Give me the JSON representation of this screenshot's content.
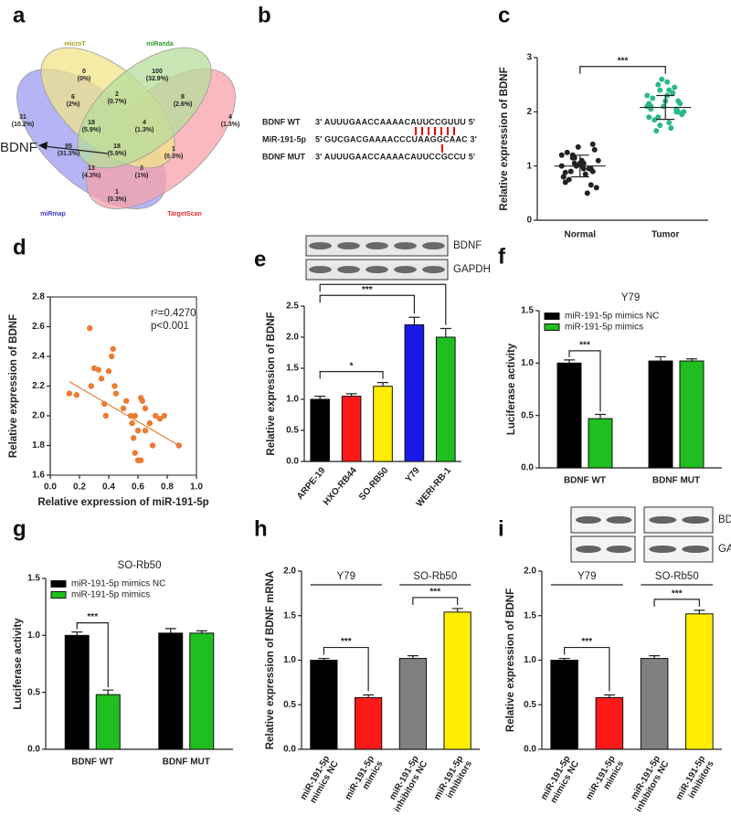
{
  "chart_data": [
    {
      "panel": "a",
      "type": "venn",
      "sets": [
        "microT",
        "miRanda",
        "miRmap",
        "TargetScan"
      ],
      "colors": [
        "#f2e48a",
        "#b5dd9a",
        "#9c9cf2",
        "#f7a2a8"
      ],
      "label_colors": [
        "#a8a020",
        "#2a9a2a",
        "#3d3dc8",
        "#e03030"
      ],
      "regions": [
        {
          "count": 0,
          "percent": "(0%)"
        },
        {
          "count": 100,
          "percent": "(32.9%)"
        },
        {
          "count": 31,
          "percent": "(10.2%)"
        },
        {
          "count": 4,
          "percent": "(1.3%)"
        },
        {
          "count": 6,
          "percent": "(2%)"
        },
        {
          "count": 2,
          "percent": "(0.7%)"
        },
        {
          "count": 8,
          "percent": "(2.6%)"
        },
        {
          "count": 18,
          "percent": "(5.9%)"
        },
        {
          "count": 4,
          "percent": "(1.3%)"
        },
        {
          "count": 95,
          "percent": "(31.3%)"
        },
        {
          "count": 18,
          "percent": "(5.9%)"
        },
        {
          "count": 1,
          "percent": "(0.3%)"
        },
        {
          "count": 13,
          "percent": "(4.3%)"
        },
        {
          "count": 3,
          "percent": "(1%)"
        },
        {
          "count": 1,
          "percent": "(0.3%)"
        }
      ],
      "annotation": "BDNF"
    },
    {
      "panel": "b",
      "type": "alignment",
      "rows": [
        {
          "label": "BDNF WT",
          "sequence": "3' AUUUGAACCAAAACAUUCCGUUU 5'"
        },
        {
          "label": "MiR-191-5p",
          "sequence": "5' GUCGACGAAAACCCUAAGGCAAC 3'"
        },
        {
          "label": "BDNF MUT",
          "sequence": "3' AUUUGAACCAAAACAUUCCGCCU 5'"
        }
      ]
    },
    {
      "panel": "c",
      "type": "strip",
      "ylabel": "Relative expression of BDNF",
      "categories": [
        "Normal",
        "Tumor"
      ],
      "colors": [
        "#222222",
        "#2bb88a"
      ],
      "values": [
        [
          1.0,
          0.95,
          1.1,
          1.2,
          0.8,
          0.9,
          1.05,
          1.15,
          0.7,
          1.3,
          0.85,
          1.0,
          1.25,
          0.6,
          0.5,
          1.35,
          0.75,
          1.1,
          0.95,
          1.05,
          0.9,
          1.2,
          0.65,
          1.0,
          1.15,
          0.8,
          1.4,
          0.95,
          1.05,
          0.88
        ],
        [
          2.1,
          2.0,
          2.3,
          2.5,
          1.9,
          2.2,
          1.8,
          2.4,
          2.05,
          2.15,
          1.7,
          2.6,
          2.25,
          1.95,
          2.35,
          2.1,
          1.85,
          2.0,
          2.45,
          2.2,
          1.65,
          2.3,
          2.05,
          2.55,
          1.9,
          2.15,
          2.0,
          2.4,
          1.75,
          2.1
        ]
      ],
      "means": [
        1.0,
        2.08
      ],
      "sds": [
        0.2,
        0.22
      ],
      "ylim": [
        0,
        3
      ],
      "yticks": [
        0,
        1,
        2,
        3
      ],
      "significance": [
        {
          "from": 0,
          "to": 1,
          "label": "***"
        }
      ]
    },
    {
      "panel": "d",
      "type": "scatter",
      "xlabel": "Relative expression of miR-191-5p",
      "ylabel": "Relative expression of BDNF",
      "color": "#e87d33",
      "x": [
        0.13,
        0.18,
        0.27,
        0.28,
        0.3,
        0.33,
        0.35,
        0.37,
        0.4,
        0.42,
        0.43,
        0.44,
        0.38,
        0.45,
        0.5,
        0.52,
        0.55,
        0.56,
        0.57,
        0.58,
        0.6,
        0.58,
        0.6,
        0.62,
        0.63,
        0.65,
        0.65,
        0.68,
        0.7,
        0.72,
        0.75,
        0.78,
        0.88,
        0.62
      ],
      "values": [
        2.15,
        2.14,
        2.59,
        2.2,
        2.32,
        2.31,
        2.25,
        2.08,
        2.3,
        2.4,
        2.45,
        2.2,
        2.0,
        2.15,
        2.05,
        2.1,
        2.0,
        1.95,
        1.85,
        1.75,
        1.7,
        2.0,
        1.9,
        2.12,
        2.1,
        1.9,
        2.05,
        1.95,
        1.8,
        2.0,
        1.98,
        2.0,
        1.8,
        1.7
      ],
      "trendline": {
        "x": [
          0.13,
          0.88
        ],
        "values": [
          2.23,
          1.8
        ]
      },
      "annotations": [
        "r²=0.4270",
        "p<0.001"
      ],
      "xlim": [
        0,
        1
      ],
      "xticks": [
        {
          "value": 0,
          "label": "0.0"
        },
        0.2,
        0.4,
        0.6,
        0.8,
        {
          "value": 1,
          "label": "1.0"
        }
      ],
      "ylim": [
        1.6,
        2.8
      ],
      "yticks": [
        1.6,
        1.8,
        {
          "value": 2,
          "label": "2.0"
        },
        2.2,
        2.4,
        2.6,
        2.8
      ]
    },
    {
      "panel": "e",
      "type": "bar",
      "ylabel": "Relative expression of BDNF",
      "blot_labels": [
        "BDNF",
        "GAPDH"
      ],
      "categories": [
        "ARPE-19",
        "HXO-RB44",
        "SO-RB50",
        "Y79",
        "WERI-RB-1"
      ],
      "values": [
        1.0,
        1.05,
        1.21,
        2.2,
        2.0
      ],
      "errors": [
        0.05,
        0.04,
        0.06,
        0.12,
        0.14
      ],
      "colors": [
        "#000000",
        "#ff1a1a",
        "#ffee00",
        "#1a1ae6",
        "#1fbf1f"
      ],
      "ylim": [
        0,
        2.5
      ],
      "yticks": [
        {
          "value": 0,
          "label": "0.0"
        },
        0.5,
        {
          "value": 1,
          "label": "1.0"
        },
        1.5,
        {
          "value": 2,
          "label": "2.0"
        },
        2.5
      ],
      "significance": [
        {
          "from": 0,
          "to": 2,
          "label": "*"
        },
        {
          "from": 0,
          "to": 3,
          "label": "***"
        },
        {
          "from": 0,
          "to": 4,
          "label": "***"
        }
      ]
    },
    {
      "panel": "f",
      "type": "grouped_bar",
      "title": "Y79",
      "ylabel": "Luciferase activity",
      "categories": [
        "BDNF WT",
        "BDNF MUT"
      ],
      "series": [
        {
          "name": "miR-191-5p mimics NC",
          "color": "#000000",
          "values": [
            1.0,
            1.02
          ],
          "errors": [
            0.03,
            0.04
          ]
        },
        {
          "name": "miR-191-5p mimics",
          "color": "#1fbf1f",
          "values": [
            0.47,
            1.02
          ],
          "errors": [
            0.04,
            0.02
          ]
        }
      ],
      "legend": "upper left",
      "ylim": [
        0,
        1.5
      ],
      "yticks": [
        {
          "value": 0,
          "label": "0.0"
        },
        0.5,
        {
          "value": 1,
          "label": "1.0"
        },
        1.5
      ],
      "significance": [
        {
          "category": 0,
          "from": 0,
          "to": 1,
          "label": "***"
        }
      ]
    },
    {
      "panel": "g",
      "type": "grouped_bar",
      "title": "SO-Rb50",
      "ylabel": "Luciferase activity",
      "categories": [
        "BDNF WT",
        "BDNF MUT"
      ],
      "series": [
        {
          "name": "miR-191-5p mimics NC",
          "color": "#000000",
          "values": [
            1.0,
            1.02
          ],
          "errors": [
            0.03,
            0.04
          ]
        },
        {
          "name": "miR-191-5p mimics",
          "color": "#1fbf1f",
          "values": [
            0.48,
            1.02
          ],
          "errors": [
            0.04,
            0.02
          ]
        }
      ],
      "legend": "upper left",
      "ylim": [
        0,
        1.5
      ],
      "yticks": [
        {
          "value": 0,
          "label": "0.0"
        },
        0.5,
        {
          "value": 1,
          "label": "1.0"
        },
        1.5
      ],
      "significance": [
        {
          "category": 0,
          "from": 0,
          "to": 1,
          "label": "***"
        }
      ]
    },
    {
      "panel": "h",
      "type": "bar",
      "ylabel": "Relative expression of BDNF mRNA",
      "categories": [
        [
          "miR-191-5p",
          "mimics NC"
        ],
        [
          "miR-191-5p",
          "mimics"
        ],
        [
          "miR-191-5p",
          "inhibitors NC"
        ],
        [
          "miR-191-5p",
          "inhibitors"
        ]
      ],
      "values": [
        1.0,
        0.58,
        1.02,
        1.54
      ],
      "errors": [
        0.02,
        0.03,
        0.03,
        0.04
      ],
      "colors": [
        "#000000",
        "#ff1a1a",
        "#808080",
        "#ffee00"
      ],
      "groups": [
        {
          "label": "Y79",
          "from": 0,
          "to": 1
        },
        {
          "label": "SO-Rb50",
          "from": 2,
          "to": 3
        }
      ],
      "ylim": [
        0,
        2
      ],
      "yticks": [
        {
          "value": 0,
          "label": "0.0"
        },
        0.5,
        {
          "value": 1,
          "label": "1.0"
        },
        1.5,
        {
          "value": 2,
          "label": "2.0"
        }
      ],
      "significance": [
        {
          "from": 0,
          "to": 1,
          "label": "***"
        },
        {
          "from": 2,
          "to": 3,
          "label": "***"
        }
      ]
    },
    {
      "panel": "i",
      "type": "bar",
      "ylabel": "Relative expression of BDNF",
      "blot_labels": [
        "BDNF",
        "GAPDH"
      ],
      "categories": [
        [
          "miR-191-5p",
          "mimics NC"
        ],
        [
          "miR-191-5p",
          "mimics"
        ],
        [
          "miR-191-5p",
          "inhibitors NC"
        ],
        [
          "miR-191-5p",
          "inhibitors"
        ]
      ],
      "values": [
        1.0,
        0.58,
        1.02,
        1.52
      ],
      "errors": [
        0.02,
        0.03,
        0.03,
        0.04
      ],
      "colors": [
        "#000000",
        "#ff1a1a",
        "#808080",
        "#ffee00"
      ],
      "groups": [
        {
          "label": "Y79",
          "from": 0,
          "to": 1
        },
        {
          "label": "SO-Rb50",
          "from": 2,
          "to": 3
        }
      ],
      "ylim": [
        0,
        2
      ],
      "yticks": [
        {
          "value": 0,
          "label": "0.0"
        },
        0.5,
        {
          "value": 1,
          "label": "1.0"
        },
        1.5,
        {
          "value": 2,
          "label": "2.0"
        }
      ],
      "significance": [
        {
          "from": 0,
          "to": 1,
          "label": "***"
        },
        {
          "from": 2,
          "to": 3,
          "label": "***"
        }
      ]
    }
  ]
}
